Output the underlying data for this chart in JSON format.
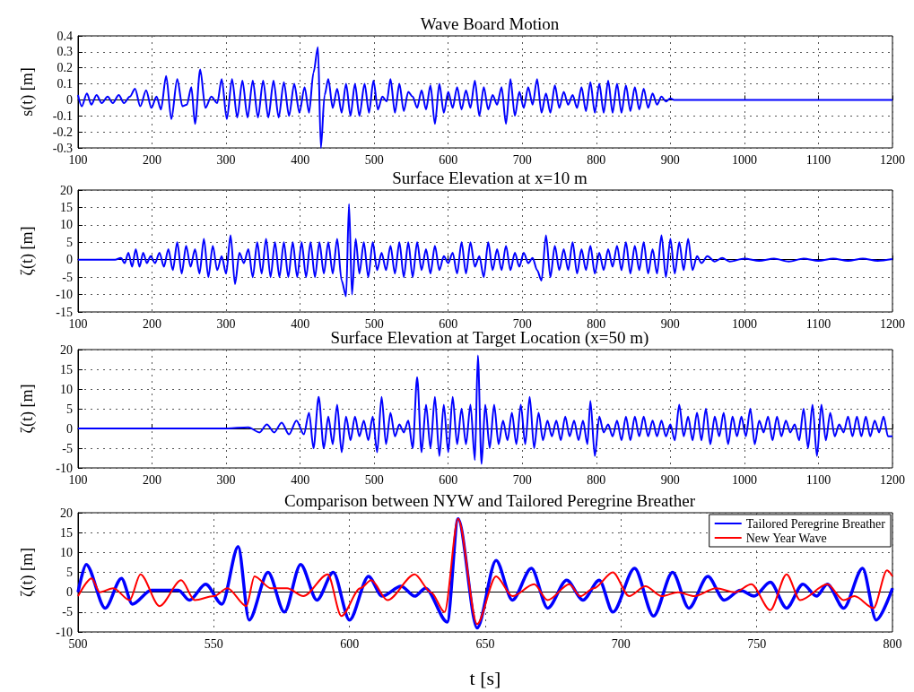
{
  "chart_data": [
    {
      "type": "line",
      "title": "Wave Board Motion",
      "ylabel": "s(t) [m]",
      "xlim": [
        100,
        1200
      ],
      "xticks": [
        100,
        200,
        300,
        400,
        500,
        600,
        700,
        800,
        900,
        1000,
        1100,
        1200
      ],
      "ylim": [
        -0.3,
        0.4
      ],
      "yticks": [
        -0.3,
        -0.2,
        -0.1,
        0,
        0.1,
        0.2,
        0.3,
        0.4
      ],
      "grid": true,
      "series": [
        {
          "color": "#0000ff",
          "x": [
            100,
            105,
            112,
            118,
            125,
            132,
            140,
            147,
            155,
            162,
            170,
            177,
            184,
            192,
            199,
            206,
            212,
            219,
            226,
            234,
            241,
            247,
            253,
            258,
            265,
            272,
            280,
            288,
            294,
            301,
            308,
            315,
            322,
            329,
            336,
            343,
            350,
            357,
            364,
            371,
            378,
            385,
            392,
            399,
            406,
            412,
            418,
            424,
            428,
            433,
            438,
            444,
            450,
            456,
            462,
            468,
            474,
            480,
            487,
            493,
            499,
            505,
            511,
            517,
            522,
            528,
            534,
            540,
            546,
            552,
            558,
            564,
            570,
            576,
            582,
            588,
            594,
            600,
            606,
            612,
            618,
            624,
            630,
            636,
            642,
            648,
            654,
            660,
            666,
            672,
            678,
            684,
            690,
            696,
            702,
            708,
            714,
            720,
            726,
            732,
            738,
            744,
            750,
            756,
            762,
            768,
            774,
            780,
            786,
            792,
            798,
            804,
            810,
            816,
            822,
            828,
            834,
            840,
            846,
            852,
            858,
            864,
            870,
            876,
            882,
            888,
            894,
            900,
            905,
            1200
          ],
          "values": [
            0.03,
            -0.04,
            0.04,
            -0.03,
            0.03,
            -0.02,
            0.02,
            -0.02,
            0.03,
            -0.02,
            0.02,
            0.07,
            -0.04,
            0.06,
            -0.05,
            0.02,
            -0.06,
            0.15,
            -0.12,
            0.13,
            -0.04,
            -0.03,
            0.08,
            -0.15,
            0.19,
            -0.05,
            0.02,
            -0.02,
            0.13,
            -0.12,
            0.13,
            -0.11,
            0.12,
            -0.11,
            0.12,
            -0.11,
            0.12,
            -0.11,
            0.12,
            -0.11,
            0.11,
            -0.1,
            0.1,
            -0.08,
            0.08,
            -0.08,
            0.17,
            0.33,
            -0.3,
            0.03,
            0.13,
            -0.05,
            0.07,
            -0.08,
            0.1,
            -0.1,
            0.1,
            -0.1,
            0.1,
            -0.08,
            0.12,
            -0.06,
            0.02,
            -0.01,
            0.13,
            -0.08,
            0.1,
            -0.07,
            0.05,
            0.02,
            -0.05,
            0.06,
            -0.06,
            0.09,
            -0.15,
            0.1,
            -0.08,
            0.05,
            -0.05,
            0.08,
            -0.06,
            0.06,
            -0.05,
            0.12,
            -0.1,
            0.08,
            -0.06,
            0.03,
            -0.03,
            0.08,
            -0.15,
            0.13,
            -0.1,
            0.05,
            -0.05,
            0.08,
            -0.03,
            0.13,
            -0.08,
            0.04,
            -0.08,
            0.09,
            -0.05,
            0.05,
            -0.03,
            0.03,
            -0.05,
            0.08,
            -0.07,
            0.11,
            -0.08,
            0.1,
            -0.08,
            0.12,
            -0.08,
            0.1,
            -0.08,
            0.09,
            -0.07,
            0.08,
            -0.06,
            0.07,
            -0.05,
            0.04,
            -0.03,
            0.02,
            -0.01,
            0.01,
            0,
            0
          ]
        }
      ]
    },
    {
      "type": "line",
      "title": "Surface Elevation at x=10 m",
      "ylabel": "ζ(t) [m]",
      "xlim": [
        100,
        1200
      ],
      "xticks": [
        100,
        200,
        300,
        400,
        500,
        600,
        700,
        800,
        900,
        1000,
        1100,
        1200
      ],
      "ylim": [
        -15,
        20
      ],
      "yticks": [
        -15,
        -10,
        -5,
        0,
        5,
        10,
        15,
        20
      ],
      "grid": true,
      "series": [
        {
          "color": "#0000ff",
          "x": [
            100,
            150,
            158,
            163,
            168,
            173,
            178,
            183,
            188,
            193,
            198,
            204,
            210,
            216,
            222,
            228,
            234,
            240,
            246,
            252,
            258,
            264,
            270,
            276,
            282,
            288,
            294,
            300,
            306,
            312,
            318,
            324,
            330,
            336,
            342,
            348,
            354,
            360,
            366,
            372,
            378,
            384,
            390,
            396,
            402,
            408,
            414,
            420,
            426,
            432,
            438,
            444,
            450,
            456,
            462,
            466,
            470,
            475,
            480,
            486,
            492,
            498,
            504,
            510,
            516,
            522,
            528,
            534,
            540,
            546,
            552,
            558,
            564,
            570,
            576,
            582,
            588,
            594,
            600,
            606,
            612,
            618,
            624,
            630,
            636,
            642,
            648,
            654,
            660,
            666,
            672,
            678,
            684,
            690,
            696,
            702,
            708,
            714,
            720,
            726,
            732,
            738,
            744,
            750,
            756,
            762,
            768,
            774,
            780,
            786,
            792,
            798,
            804,
            810,
            816,
            822,
            828,
            834,
            840,
            846,
            852,
            858,
            864,
            870,
            876,
            882,
            888,
            894,
            900,
            906,
            912,
            918,
            924,
            930,
            936,
            942,
            950,
            960,
            970,
            980,
            1000,
            1020,
            1040,
            1060,
            1080,
            1100,
            1120,
            1140,
            1160,
            1180,
            1200
          ],
          "values": [
            0,
            0,
            0.5,
            -1,
            2,
            -2,
            3,
            -2,
            2,
            -1,
            1,
            -1,
            2,
            -2,
            3,
            -3,
            5,
            -4,
            4,
            -2,
            3,
            -4,
            6,
            -5,
            4,
            -3,
            1,
            -4,
            7,
            -7,
            2,
            -1,
            3,
            -5,
            5,
            -4,
            6,
            -5,
            5,
            -5,
            5,
            -5,
            5,
            -5,
            5,
            -5,
            5,
            -5,
            5,
            -4,
            5,
            -4,
            6,
            -6,
            -10.5,
            16,
            -10,
            6,
            -4,
            5,
            -5,
            5,
            -3,
            2,
            -3,
            4,
            -4,
            5,
            -5,
            5,
            -5,
            5,
            -3,
            3,
            -4,
            4,
            -3,
            1,
            -1,
            2,
            -4,
            5,
            -4,
            5,
            -2,
            1,
            -5,
            5,
            -3,
            3,
            -3,
            4,
            -3,
            2,
            -2,
            2,
            -1,
            0.5,
            -3,
            -6,
            7,
            -5,
            4,
            -3,
            3,
            -3,
            5,
            -4,
            3,
            -3,
            4,
            -4,
            2,
            -3,
            3,
            -2,
            4,
            -3,
            5,
            -4,
            4,
            -3,
            5,
            -4,
            3,
            -4,
            7,
            -5,
            6,
            -4,
            5,
            -3,
            6,
            -3,
            1,
            -1,
            1,
            -0.5,
            0.5,
            -0.5,
            0.3,
            -0.3,
            0.3,
            -0.5,
            0.3,
            -0.3,
            0.3,
            -0.3,
            0.3,
            -0.3,
            0.2
          ]
        }
      ]
    },
    {
      "type": "line",
      "title": "Surface Elevation at Target Location (x=50 m)",
      "ylabel": "ζ(t) [m]",
      "xlim": [
        100,
        1200
      ],
      "xticks": [
        100,
        200,
        300,
        400,
        500,
        600,
        700,
        800,
        900,
        1000,
        1100,
        1200
      ],
      "ylim": [
        -10,
        20
      ],
      "yticks": [
        -10,
        -5,
        0,
        5,
        10,
        15,
        20
      ],
      "grid": true,
      "series": [
        {
          "color": "#0000ff",
          "x": [
            100,
            200,
            300,
            330,
            345,
            355,
            365,
            375,
            385,
            395,
            405,
            412,
            418,
            425,
            432,
            438,
            444,
            450,
            456,
            462,
            468,
            474,
            480,
            486,
            492,
            498,
            504,
            510,
            516,
            522,
            528,
            534,
            540,
            546,
            552,
            558,
            564,
            570,
            576,
            582,
            588,
            594,
            600,
            606,
            612,
            618,
            624,
            630,
            636,
            640,
            645,
            650,
            656,
            662,
            668,
            674,
            680,
            686,
            692,
            698,
            704,
            710,
            716,
            722,
            728,
            734,
            740,
            746,
            752,
            758,
            764,
            770,
            776,
            782,
            788,
            792,
            798,
            804,
            810,
            816,
            822,
            828,
            834,
            840,
            846,
            852,
            858,
            864,
            870,
            876,
            882,
            888,
            894,
            900,
            906,
            912,
            918,
            924,
            930,
            936,
            942,
            948,
            954,
            960,
            966,
            972,
            978,
            984,
            990,
            996,
            1002,
            1008,
            1014,
            1020,
            1026,
            1032,
            1038,
            1044,
            1050,
            1056,
            1062,
            1068,
            1074,
            1080,
            1086,
            1092,
            1098,
            1104,
            1110,
            1116,
            1122,
            1128,
            1134,
            1140,
            1146,
            1152,
            1158,
            1164,
            1170,
            1176,
            1182,
            1188,
            1194,
            1200
          ],
          "values": [
            0,
            0,
            0,
            0.3,
            -1,
            1,
            -1,
            1.5,
            -1.5,
            2,
            -1.5,
            4,
            -5,
            8,
            -5,
            3,
            -4,
            6,
            -6,
            3,
            -3,
            3,
            -2,
            2,
            -3,
            3,
            -6,
            8,
            -4,
            4,
            -2,
            1,
            -1,
            2,
            -5,
            13,
            -6,
            6,
            -5,
            8,
            -7,
            6,
            -6,
            8,
            -4,
            5,
            -4,
            6,
            -8,
            18.5,
            -9,
            6,
            -5,
            6,
            -4,
            2,
            -3,
            4,
            -4,
            6,
            -4,
            8,
            -5,
            4,
            -3,
            2,
            -2,
            2,
            -3,
            3,
            -2,
            2,
            -3,
            2,
            -4,
            7,
            -7,
            3,
            -1,
            1,
            -2,
            2,
            -3,
            3,
            -3,
            3,
            -2,
            3,
            -2,
            2,
            -2,
            2,
            -2,
            1,
            -3,
            6,
            -2,
            3,
            -3,
            4,
            -3,
            5,
            -4,
            3,
            -2,
            4,
            -4,
            3,
            -2,
            3,
            -2,
            5,
            -4,
            2,
            -1,
            3,
            -3,
            3,
            -2,
            2,
            -1,
            1,
            -3,
            5,
            -5,
            6,
            -7,
            6,
            -3,
            4,
            -2,
            1,
            -1,
            3,
            -2,
            3,
            -2,
            3,
            -2,
            2,
            -1,
            3,
            -2,
            -2
          ]
        }
      ]
    },
    {
      "type": "line",
      "title": "Comparison between NYW and Tailored Peregrine Breather",
      "xlabel": "t [s]",
      "ylabel": "ζ(t) [m]",
      "xlim": [
        500,
        800
      ],
      "xticks": [
        500,
        550,
        600,
        650,
        700,
        750,
        800
      ],
      "ylim": [
        -10,
        20
      ],
      "yticks": [
        -10,
        -5,
        0,
        5,
        10,
        15,
        20
      ],
      "grid": true,
      "legend": "top right",
      "series": [
        {
          "name": "Tailored Peregrine Breather",
          "color": "#0000ff",
          "x": [
            500,
            503,
            510,
            516,
            520,
            527,
            537,
            541,
            547,
            553,
            559,
            563,
            570,
            576,
            582,
            588,
            594,
            600,
            607,
            612,
            619,
            624,
            628,
            636,
            640,
            647,
            654,
            660,
            667,
            673,
            680,
            686,
            692,
            697,
            705,
            712,
            719,
            725,
            732,
            738,
            744,
            749,
            755,
            761,
            767,
            772,
            776,
            782,
            789,
            794,
            800
          ],
          "values": [
            0,
            7,
            -4,
            3.5,
            -3,
            0.5,
            0.5,
            -2,
            2,
            -3,
            11.5,
            -7,
            5,
            -5,
            7,
            -2,
            5,
            -7,
            4,
            -1,
            1.5,
            -1,
            1,
            -7.5,
            18.5,
            -9,
            8,
            -2,
            6,
            -4,
            3,
            -2,
            3,
            -5,
            6,
            -6,
            5,
            -4,
            4,
            -2,
            0.5,
            -1,
            2.5,
            -4,
            2,
            -1,
            2,
            -4,
            6,
            -7,
            1
          ]
        },
        {
          "name": "New Year Wave",
          "color": "#ff0000",
          "x": [
            500,
            505,
            508,
            513,
            519,
            523,
            530,
            538,
            543,
            550,
            555,
            562,
            565,
            571,
            577,
            583,
            592,
            597,
            604,
            608,
            614,
            624,
            630,
            635,
            640,
            647,
            654,
            660,
            668,
            673,
            681,
            685,
            690,
            697,
            703,
            709,
            715,
            721,
            727,
            735,
            742,
            748,
            755,
            761,
            766,
            776,
            782,
            786,
            793,
            798,
            800
          ],
          "values": [
            -1,
            3.5,
            0,
            1,
            -2,
            4.5,
            -3.5,
            3,
            -2,
            -1,
            1,
            -3.5,
            4,
            1,
            1,
            -1,
            4.5,
            -6,
            1,
            3,
            -2,
            4.5,
            0,
            -5,
            18.5,
            -8,
            4,
            -1,
            2,
            -2,
            2,
            -1,
            1,
            5,
            -1,
            1.5,
            -1,
            0,
            -1,
            1,
            0,
            2,
            -4.5,
            4.5,
            -2,
            2,
            -2,
            -1,
            -4,
            5.5,
            4
          ]
        }
      ]
    }
  ]
}
